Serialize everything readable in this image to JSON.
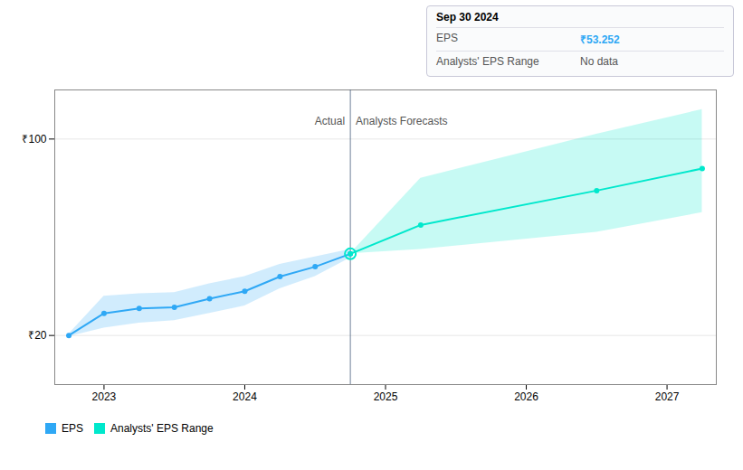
{
  "chart_data": {
    "type": "line",
    "series": [
      {
        "name": "EPS",
        "color": "#2fa8f5",
        "marker": "circle",
        "x": [
          2022.75,
          2023.0,
          2023.25,
          2023.5,
          2023.75,
          2024.0,
          2024.25,
          2024.5,
          2024.75
        ],
        "values": [
          20.0,
          29.0,
          31.0,
          31.5,
          35.0,
          38.0,
          44.0,
          48.0,
          53.252
        ],
        "upper": [
          20.5,
          36.0,
          37.0,
          37.5,
          41.0,
          44.0,
          49.0,
          52.0,
          55.0
        ],
        "lower": [
          19.5,
          23.0,
          25.0,
          26.0,
          29.0,
          32.0,
          39.0,
          44.0,
          51.5
        ]
      },
      {
        "name": "Analysts' EPS Range",
        "color": "#00e8cc",
        "marker": "circle",
        "x": [
          2024.75,
          2025.25,
          2026.5,
          2027.25
        ],
        "values": [
          53.252,
          65.0,
          79.0,
          88.0
        ],
        "upper": [
          53.252,
          84.0,
          102.0,
          112.0
        ],
        "lower": [
          53.252,
          55.0,
          62.0,
          70.0
        ]
      }
    ],
    "divider_x": 2024.75,
    "xlim": [
      2022.65,
      2027.35
    ],
    "xticks": [
      2023,
      2024,
      2025,
      2026,
      2027
    ],
    "ylim": [
      0,
      120
    ],
    "yticks": [
      {
        "value": 20,
        "label": "₹20"
      },
      {
        "value": 100,
        "label": "₹100"
      }
    ],
    "grid": true,
    "annotations": [
      {
        "text": "Actual",
        "x": 2024.75,
        "y": 109
      },
      {
        "text": "Analysts Forecasts",
        "x": 2024.75,
        "y": 109
      }
    ],
    "tooltip": {
      "title": "Sep 30 2024",
      "rows": [
        {
          "label": "EPS",
          "value": "₹53.252"
        },
        {
          "label": "Analysts' EPS Range",
          "value": "No data"
        }
      ]
    },
    "legend": "lower left"
  }
}
